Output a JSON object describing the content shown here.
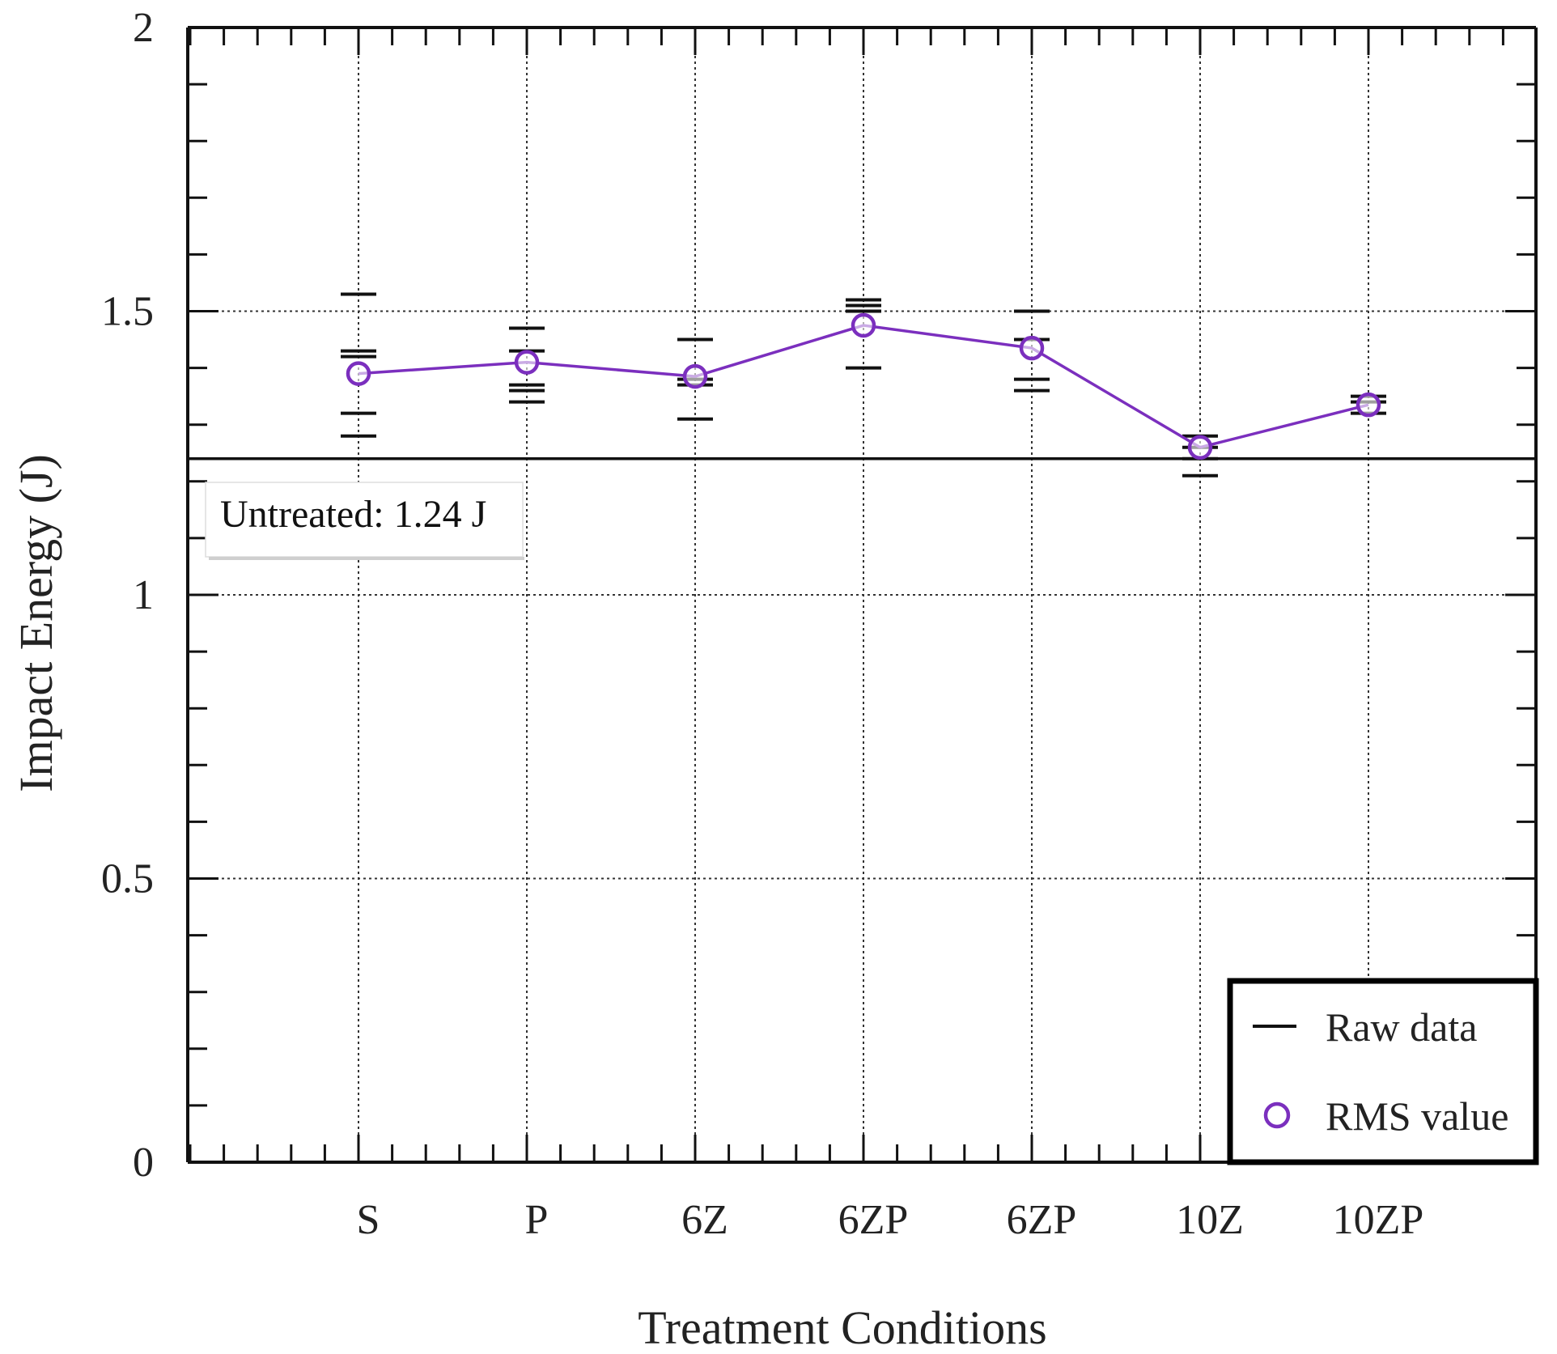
{
  "chart_data": {
    "type": "line",
    "title": "",
    "xlabel": "Treatment Conditions",
    "ylabel": "Impact Energy (J)",
    "ylim": [
      0,
      2
    ],
    "yticks": [
      0,
      0.5,
      1,
      1.5,
      2
    ],
    "ytick_labels": [
      "0",
      "0.5",
      "1",
      "1.5",
      "2"
    ],
    "grid": true,
    "categories": [
      "S",
      "P",
      "6Z",
      "6ZP",
      "6ZP",
      "10Z",
      "10ZP"
    ],
    "series": [
      {
        "name": "RMS value",
        "marker": "open-circle",
        "color": "#7b2fbe",
        "values": [
          1.39,
          1.41,
          1.385,
          1.475,
          1.435,
          1.26,
          1.335
        ]
      }
    ],
    "raw_data": {
      "name": "Raw data",
      "color": "#111111",
      "values": [
        [
          1.53,
          1.43,
          1.42,
          1.32,
          1.28
        ],
        [
          1.47,
          1.43,
          1.37,
          1.36,
          1.34
        ],
        [
          1.45,
          1.38,
          1.37,
          1.31
        ],
        [
          1.52,
          1.51,
          1.5,
          1.4
        ],
        [
          1.5,
          1.45,
          1.38,
          1.36
        ],
        [
          1.28,
          1.26,
          1.24,
          1.21
        ],
        [
          1.35,
          1.34,
          1.32
        ]
      ]
    },
    "reference_line": {
      "value": 1.24,
      "label": "Untreated: 1.24 J"
    },
    "legend": {
      "position": "bottom-right",
      "entries": [
        {
          "label": "Raw data",
          "symbol": "line",
          "color": "#111111"
        },
        {
          "label": "RMS value",
          "symbol": "open-circle",
          "color": "#7b2fbe"
        }
      ]
    }
  }
}
